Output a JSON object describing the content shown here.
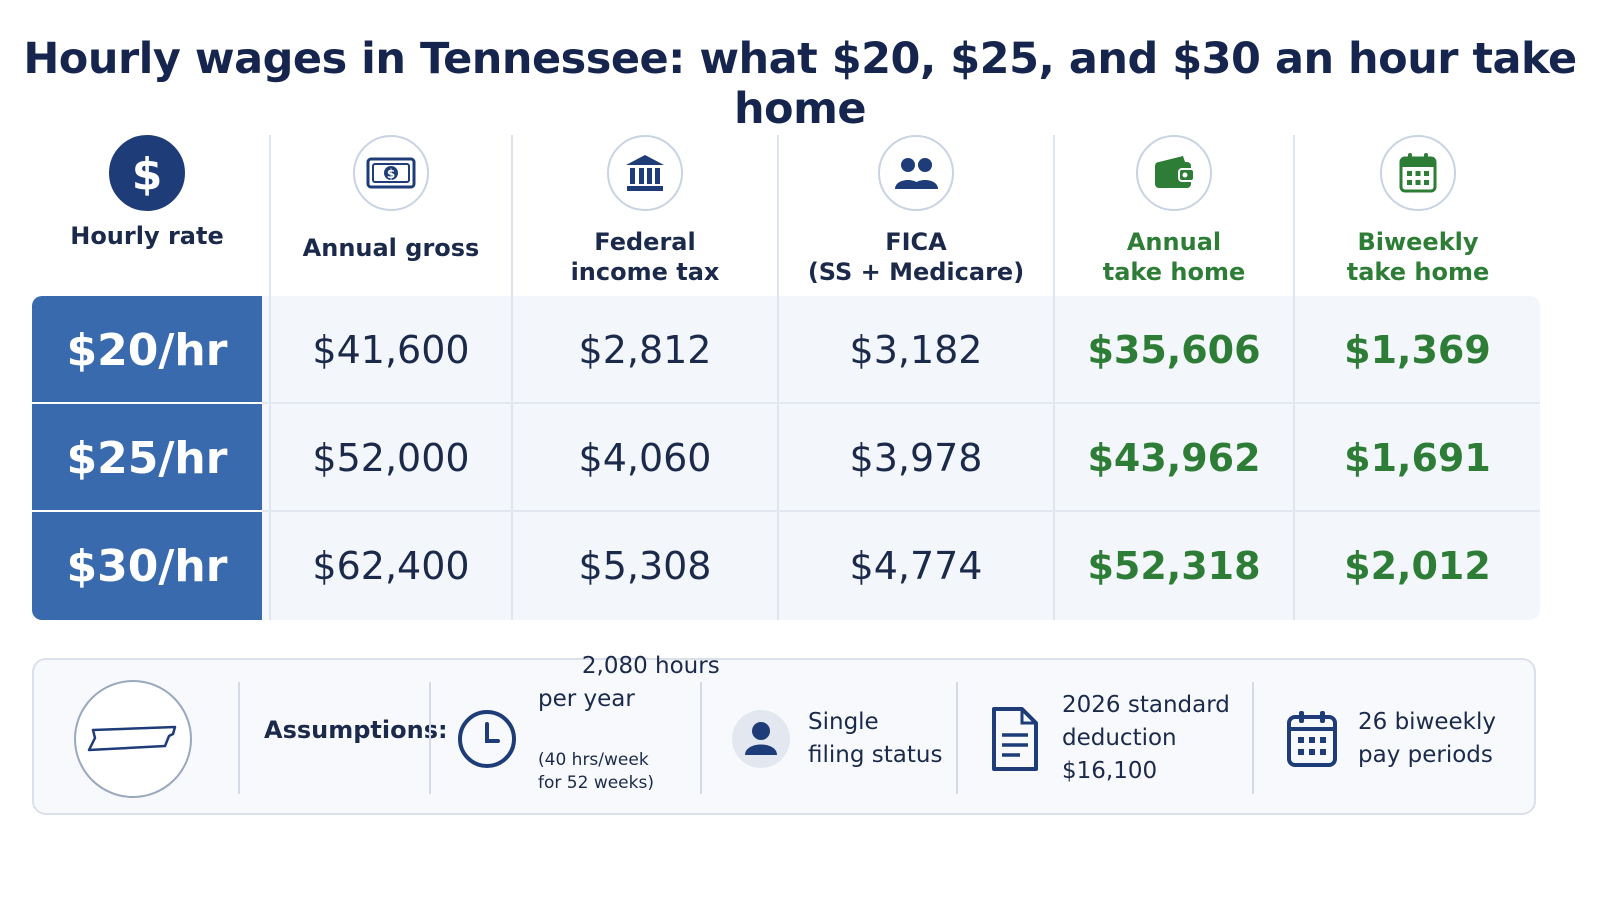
{
  "title": "Hourly wages in Tennessee: what $20, $25, and $30 an hour take home",
  "colors": {
    "navy": "#1d3c78",
    "rate_blue": "#3a6aae",
    "green": "#2e7d36",
    "row_bg": "#f3f6fb"
  },
  "columns": [
    {
      "icon": "dollar-icon",
      "label": "Hourly rate"
    },
    {
      "icon": "banknote-icon",
      "label": "Annual gross"
    },
    {
      "icon": "bank-building-icon",
      "label": "Federal\nincome tax"
    },
    {
      "icon": "people-icon",
      "label": "FICA\n(SS + Medicare)"
    },
    {
      "icon": "wallet-icon",
      "label": "Annual\ntake home"
    },
    {
      "icon": "calendar-icon",
      "label": "Biweekly\ntake home"
    }
  ],
  "chart_data": {
    "type": "table",
    "title": "Hourly wages in Tennessee: what $20, $25, and $30 an hour take home",
    "columns": [
      "Hourly rate",
      "Annual gross",
      "Federal income tax",
      "FICA (SS + Medicare)",
      "Annual take home",
      "Biweekly take home"
    ],
    "rows": [
      [
        "$20/hr",
        "$41,600",
        "$2,812",
        "$3,182",
        "$35,606",
        "$1,369"
      ],
      [
        "$25/hr",
        "$52,000",
        "$4,060",
        "$3,978",
        "$43,962",
        "$1,691"
      ],
      [
        "$30/hr",
        "$62,400",
        "$5,308",
        "$4,774",
        "$52,318",
        "$2,012"
      ]
    ]
  },
  "assumptions": {
    "label": "Assumptions:",
    "items": [
      {
        "icon": "clock-icon",
        "text": "2,080 hours\nper year",
        "note": "(40 hrs/week\nfor 52 weeks)"
      },
      {
        "icon": "person-icon",
        "text": "Single\nfiling status"
      },
      {
        "icon": "document-icon",
        "text": "2026 standard\ndeduction\n$16,100"
      },
      {
        "icon": "calendar-icon",
        "text": "26 biweekly\npay periods"
      }
    ],
    "state_icon": "tennessee-outline-icon"
  }
}
